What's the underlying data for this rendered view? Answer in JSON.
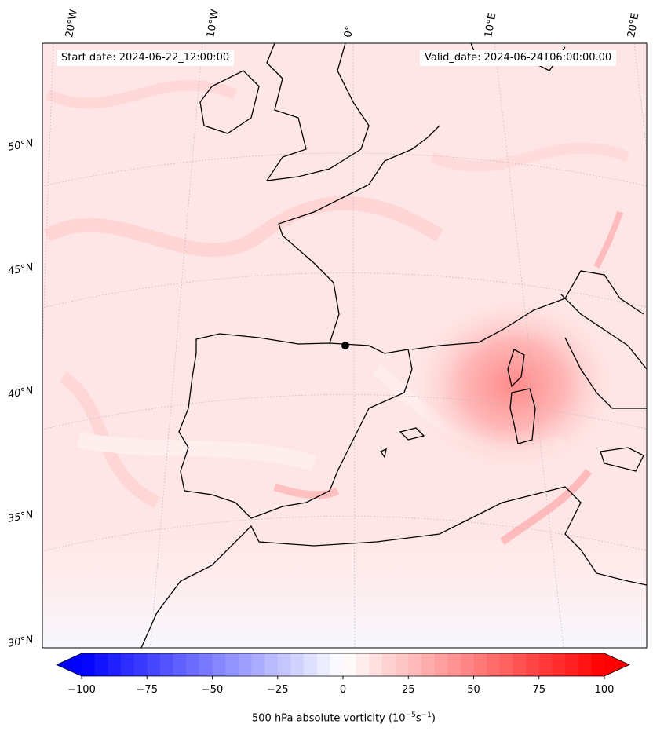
{
  "header": {
    "start_date": "Start date: 2024-06-22_12:00:00",
    "valid_date": "Valid_date: 2024-06-24T06:00:00.00"
  },
  "map": {
    "longitude_labels": [
      "20°W",
      "10°W",
      "0°",
      "10°E",
      "20°E"
    ],
    "latitude_labels": [
      "50°N",
      "45°N",
      "40°N",
      "35°N",
      "30°N"
    ],
    "field": "500 hPa absolute vorticity",
    "colors": {
      "coastline": "#000000",
      "grid": "#b8b8b8",
      "field_low": "#0000ff",
      "field_high": "#ff0000",
      "field_mid": "#ffffff"
    }
  },
  "colorbar": {
    "ticks": [
      "−100",
      "−75",
      "−50",
      "−25",
      "0",
      "25",
      "50",
      "75",
      "100"
    ],
    "label": "500 hPa absolute vorticity (10",
    "label_exp1": "−5",
    "label_mid": "s",
    "label_exp2": "−1",
    "label_close": ")",
    "min": -100,
    "max": 100,
    "levels": 40,
    "extend": "both"
  }
}
